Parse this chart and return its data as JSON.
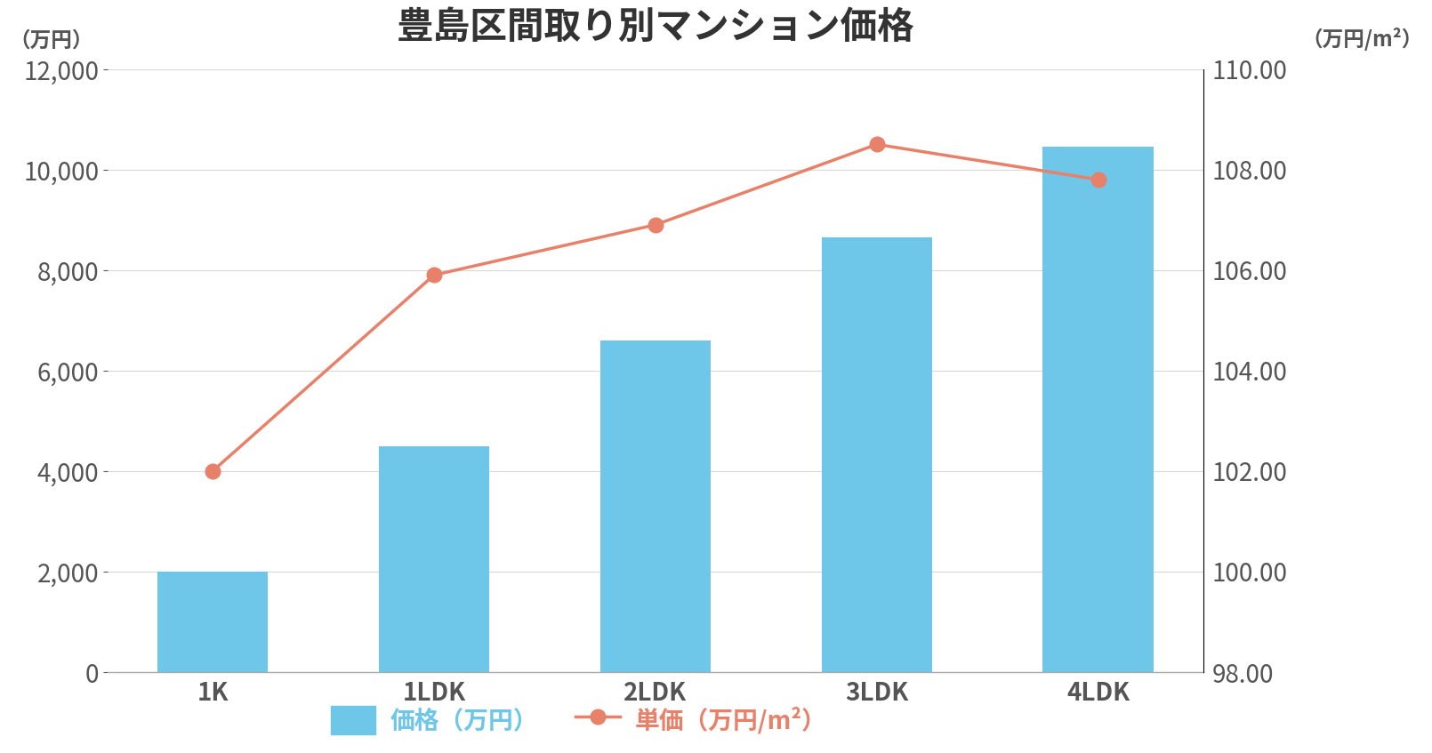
{
  "title": "豊島区間取り別マンション価格",
  "categories": [
    "1K",
    "1LDK",
    "2LDK",
    "3LDK",
    "4LDK"
  ],
  "bar_values": [
    2000,
    4500,
    6600,
    8650,
    10450
  ],
  "line_values": [
    102.0,
    105.9,
    106.9,
    108.5,
    107.8
  ],
  "bar_color": "#6ec6e8",
  "line_color": "#e8816a",
  "left_ylabel": "（万円）",
  "right_ylabel": "（万円/m²）",
  "left_ylim": [
    0,
    12000
  ],
  "left_yticks": [
    0,
    2000,
    4000,
    6000,
    8000,
    10000,
    12000
  ],
  "right_ylim": [
    98.0,
    110.0
  ],
  "right_yticks": [
    98.0,
    100.0,
    102.0,
    104.0,
    106.0,
    108.0,
    110.0
  ],
  "legend_bar_label": "価格（万円）",
  "legend_line_label": "単価（万円/m²）",
  "legend_bar_color": "#6ec6e8",
  "legend_line_color": "#e8816a",
  "background_color": "#ffffff",
  "grid_color": "#d8d8d8",
  "title_fontsize": 30,
  "axis_label_fontsize": 17,
  "tick_fontsize": 20,
  "legend_fontsize": 20,
  "bar_width": 0.5,
  "marker": "o",
  "marker_size": 12,
  "line_width": 2.5
}
